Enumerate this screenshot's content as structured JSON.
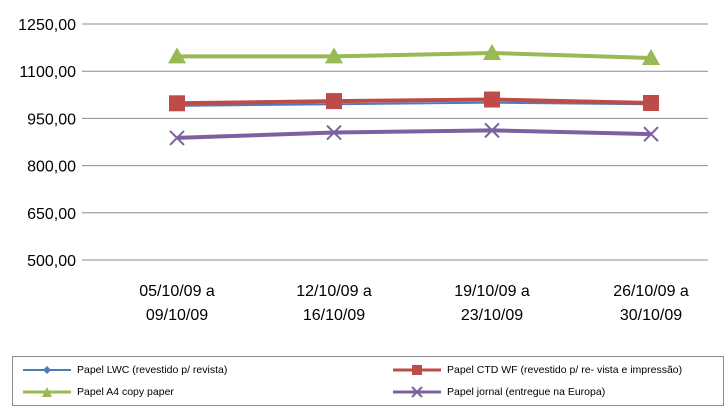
{
  "chart_data": {
    "type": "line",
    "categories": [
      [
        "05/10/09 a",
        "09/10/09"
      ],
      [
        "12/10/09 a",
        "16/10/09"
      ],
      [
        "19/10/09 a",
        "23/10/09"
      ],
      [
        "26/10/09 a",
        "30/10/09"
      ]
    ],
    "ylim": [
      500,
      1250
    ],
    "yticks": [
      "500,00",
      "650,00",
      "800,00",
      "950,00",
      "1100,00",
      "1250,00"
    ],
    "ytick_values": [
      500,
      650,
      800,
      950,
      1100,
      1250
    ],
    "grid": true,
    "legend_position": "bottom",
    "series": [
      {
        "name": "Papel LWC  (revestido  p/ revista)",
        "values": [
          990,
          995,
          1000,
          995
        ],
        "color": "#4a7ebb",
        "marker": "diamond"
      },
      {
        "name": "Papel CTD WF (revestido p/ re- vista e impressão)",
        "values": [
          998,
          1005,
          1010,
          999
        ],
        "color": "#be4b48",
        "marker": "square"
      },
      {
        "name": "Papel A4 copy paper",
        "values": [
          1147,
          1147,
          1158,
          1142
        ],
        "color": "#98b954",
        "marker": "triangle"
      },
      {
        "name": "Papel jornal   (entregue na  Europa)",
        "values": [
          888,
          905,
          912,
          900
        ],
        "color": "#7d60a0",
        "marker": "x"
      }
    ]
  }
}
